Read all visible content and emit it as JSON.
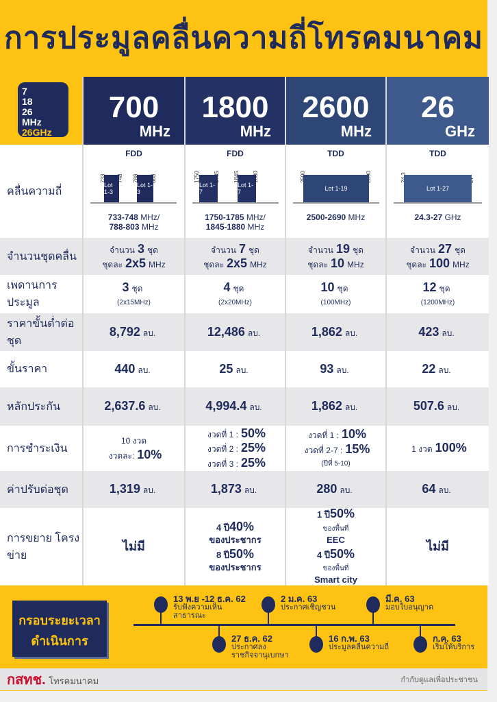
{
  "title": "การประมูลคลื่นความถี่โทรคมนาคม",
  "logo": {
    "lines": [
      "7",
      "18",
      "26",
      "MHz",
      "26GHz"
    ]
  },
  "colors": {
    "yellow": "#fdc212",
    "navy": "#1e2b5c",
    "col_headers": [
      "#1e2b5c",
      "#233165",
      "#2e4676",
      "#3e5a8c"
    ]
  },
  "columns": [
    {
      "num": "700",
      "unit": "MHz",
      "mode": "FDD",
      "ticks": [
        "733",
        "748",
        "788",
        "803"
      ],
      "lots": [
        "Lot 1-3",
        "Lot 1-3"
      ],
      "range": [
        "733-748",
        "MHz/",
        "788-803",
        "MHz"
      ]
    },
    {
      "num": "1800",
      "unit": "MHz",
      "mode": "FDD",
      "ticks": [
        "1750",
        "1785",
        "1845",
        "1880"
      ],
      "lots": [
        "Lot 1-7",
        "Lot 1-7"
      ],
      "range": [
        "1750-1785",
        "MHz/",
        "1845-1880",
        "MHz"
      ]
    },
    {
      "num": "2600",
      "unit": "MHz",
      "mode": "TDD",
      "ticks": [
        "2500",
        "2690"
      ],
      "lots": [
        "Lot 1-19"
      ],
      "range": [
        "2500-2690",
        "MHz"
      ]
    },
    {
      "num": "26",
      "unit": "GHz",
      "mode": "TDD",
      "ticks": [
        "24.3",
        "27"
      ],
      "lots": [
        "Lot 1-27"
      ],
      "range": [
        "24.3-27",
        "GHz"
      ]
    }
  ],
  "freq_label": "คลื่นความถี่",
  "rows": [
    {
      "label": "จำนวนชุดคลื่น",
      "bg": "g",
      "cells": [
        [
          [
            [
              "จำนวน",
              "s"
            ],
            [
              "3",
              "b"
            ],
            [
              "ชุด",
              "s"
            ]
          ],
          [
            [
              "ชุดละ",
              "s"
            ],
            [
              "2x5",
              "b"
            ],
            [
              "MHz",
              "s"
            ]
          ]
        ],
        [
          [
            [
              "จำนวน",
              "s"
            ],
            [
              "7",
              "b"
            ],
            [
              "ชุด",
              "s"
            ]
          ],
          [
            [
              "ชุดละ",
              "s"
            ],
            [
              "2x5",
              "b"
            ],
            [
              "MHz",
              "s"
            ]
          ]
        ],
        [
          [
            [
              "จำนวน",
              "s"
            ],
            [
              "19",
              "b"
            ],
            [
              "ชุด",
              "s"
            ]
          ],
          [
            [
              "ชุดละ",
              "s"
            ],
            [
              "10",
              "b"
            ],
            [
              "MHz",
              "s"
            ]
          ]
        ],
        [
          [
            [
              "จำนวน",
              "s"
            ],
            [
              "27",
              "b"
            ],
            [
              "ชุด",
              "s"
            ]
          ],
          [
            [
              "ชุดละ",
              "s"
            ],
            [
              "100",
              "b"
            ],
            [
              "MHz",
              "s"
            ]
          ]
        ]
      ]
    },
    {
      "label": "เพดานการประมูล",
      "bg": "w",
      "cells": [
        [
          [
            [
              "3",
              "b"
            ],
            [
              "ชุด",
              "s"
            ]
          ],
          [
            [
              "(2x15MHz)",
              "xs"
            ]
          ]
        ],
        [
          [
            [
              "4",
              "b"
            ],
            [
              "ชุด",
              "s"
            ]
          ],
          [
            [
              "(2x20MHz)",
              "xs"
            ]
          ]
        ],
        [
          [
            [
              "10",
              "b"
            ],
            [
              "ชุด",
              "s"
            ]
          ],
          [
            [
              "(100MHz)",
              "xs"
            ]
          ]
        ],
        [
          [
            [
              "12",
              "b"
            ],
            [
              "ชุด",
              "s"
            ]
          ],
          [
            [
              "(1200MHz)",
              "xs"
            ]
          ]
        ]
      ]
    },
    {
      "label": "ราคาขั้นต่ำต่อชุด",
      "bg": "g",
      "cells": [
        [
          [
            [
              "8,792",
              "b"
            ],
            [
              "ลบ.",
              "s"
            ]
          ]
        ],
        [
          [
            [
              "12,486",
              "b"
            ],
            [
              "ลบ.",
              "s"
            ]
          ]
        ],
        [
          [
            [
              "1,862",
              "b"
            ],
            [
              "ลบ.",
              "s"
            ]
          ]
        ],
        [
          [
            [
              "423",
              "b"
            ],
            [
              "ลบ.",
              "s"
            ]
          ]
        ]
      ]
    },
    {
      "label": "ขั้นราคา",
      "bg": "w",
      "cells": [
        [
          [
            [
              "440",
              "b"
            ],
            [
              "ลบ.",
              "s"
            ]
          ]
        ],
        [
          [
            [
              "25",
              "b"
            ],
            [
              "ลบ.",
              "s"
            ]
          ]
        ],
        [
          [
            [
              "93",
              "b"
            ],
            [
              "ลบ.",
              "s"
            ]
          ]
        ],
        [
          [
            [
              "22",
              "b"
            ],
            [
              "ลบ.",
              "s"
            ]
          ]
        ]
      ]
    },
    {
      "label": "หลักประกัน",
      "bg": "g",
      "cells": [
        [
          [
            [
              "2,637.6",
              "b"
            ],
            [
              "ลบ.",
              "s"
            ]
          ]
        ],
        [
          [
            [
              "4,994.4",
              "b"
            ],
            [
              "ลบ.",
              "s"
            ]
          ]
        ],
        [
          [
            [
              "1,862",
              "b"
            ],
            [
              "ลบ.",
              "s"
            ]
          ]
        ],
        [
          [
            [
              "507.6",
              "b"
            ],
            [
              "ลบ.",
              "s"
            ]
          ]
        ]
      ]
    },
    {
      "label": "การชำระเงิน",
      "bg": "w",
      "cells": [
        [
          [
            [
              "10 งวด",
              "s"
            ]
          ],
          [
            [
              "งวดละ:",
              "s"
            ],
            [
              "10%",
              "b"
            ]
          ]
        ],
        [
          [
            [
              "งวดที่ 1 :",
              "s"
            ],
            [
              "50%",
              "b"
            ]
          ],
          [
            [
              "งวดที่ 2 :",
              "s"
            ],
            [
              "25%",
              "b"
            ]
          ],
          [
            [
              "งวดที่ 3 :",
              "s"
            ],
            [
              "25%",
              "b"
            ]
          ]
        ],
        [
          [
            [
              "งวดที่ 1  :",
              "s"
            ],
            [
              "10%",
              "b"
            ]
          ],
          [
            [
              "งวดที่ 2-7 :",
              "s"
            ],
            [
              "15%",
              "b"
            ]
          ],
          [
            [
              "(ปีที่ 5-10)",
              "xs"
            ]
          ]
        ],
        [
          [
            [
              "1 งวด",
              "s"
            ],
            [
              "100%",
              "b"
            ]
          ]
        ]
      ]
    },
    {
      "label": "ค่าปรับต่อชุด",
      "bg": "g",
      "cells": [
        [
          [
            [
              "1,319",
              "b"
            ],
            [
              "ลบ.",
              "s"
            ]
          ]
        ],
        [
          [
            [
              "1,873",
              "b"
            ],
            [
              "ลบ.",
              "s"
            ]
          ]
        ],
        [
          [
            [
              "280",
              "b"
            ],
            [
              "ลบ.",
              "s"
            ]
          ]
        ],
        [
          [
            [
              "64",
              "b"
            ],
            [
              "ลบ.",
              "s"
            ]
          ]
        ]
      ]
    },
    {
      "label": "การขยาย โครงข่าย",
      "bg": "w",
      "cells": [
        [
          [
            [
              "ไม่มี",
              "b"
            ]
          ]
        ],
        [
          [
            [
              "4 ปี",
              "m"
            ],
            [
              "40%",
              "b"
            ]
          ],
          [
            [
              "ของประชากร",
              "m"
            ]
          ],
          [
            [
              "8 ปี",
              "m"
            ],
            [
              "50%",
              "b"
            ]
          ],
          [
            [
              "ของประชากร",
              "m"
            ]
          ]
        ],
        [
          [
            [
              "1 ปี",
              "m"
            ],
            [
              "50%",
              "b"
            ]
          ],
          [
            [
              "ของพื้นที่",
              "xs"
            ]
          ],
          [
            [
              "EEC",
              "m"
            ]
          ],
          [
            [
              "4 ปี",
              "m"
            ],
            [
              "50%",
              "b"
            ]
          ],
          [
            [
              "ของพื้นที่",
              "xs"
            ]
          ],
          [
            [
              "Smart city",
              "m"
            ]
          ]
        ],
        [
          [
            [
              "ไม่มี",
              "b"
            ]
          ]
        ]
      ]
    }
  ],
  "timeline": {
    "title": [
      "กรอบระยะเวลา",
      "ดำเนินการ"
    ],
    "events": [
      {
        "date": "13 พ.ย -12 ธ.ค. 62",
        "text": [
          "รับฟังความเห็น",
          "สาธารณะ"
        ],
        "side": "above"
      },
      {
        "date": "27 ธ.ค. 62",
        "text": [
          "ประกาศลง",
          "ราชกิจจานุเบกษา"
        ],
        "side": "below"
      },
      {
        "date": "2 ม.ค. 63",
        "text": [
          "ประกาศเชิญชวน"
        ],
        "side": "above"
      },
      {
        "date": "16 ก.พ. 63",
        "text": [
          "ประมูลคลื่นความถี่"
        ],
        "side": "below"
      },
      {
        "date": "มี.ค. 63",
        "text": [
          "มอบใบอนุญาต"
        ],
        "side": "above"
      },
      {
        "date": "ก.ค. 63",
        "text": [
          "เริ่มให้บริการ"
        ],
        "side": "below"
      }
    ]
  },
  "footer": {
    "brand": "กสทช.",
    "brand_sub": "โทรคมนาคม",
    "slogan": "กำกับดูแลเพื่อประชาชน"
  }
}
